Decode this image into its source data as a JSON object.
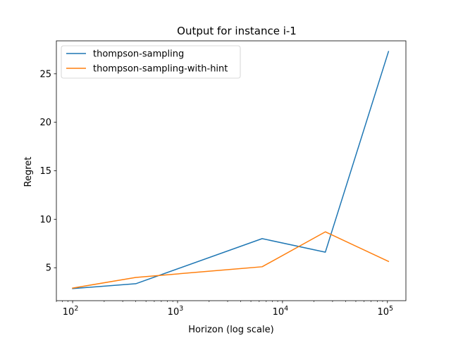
{
  "chart_data": {
    "type": "line",
    "title": "Output for instance i-1",
    "xlabel": "Horizon (log scale)",
    "ylabel": "Regret",
    "x_scale": "log",
    "x": [
      100,
      400,
      6400,
      25600,
      102400
    ],
    "xlim": [
      70,
      150000
    ],
    "ylim": [
      1.6,
      28.4
    ],
    "x_ticks": [
      {
        "value": 100,
        "mantissa": "10",
        "exp": "2"
      },
      {
        "value": 1000,
        "mantissa": "10",
        "exp": "3"
      },
      {
        "value": 10000,
        "mantissa": "10",
        "exp": "4"
      },
      {
        "value": 100000,
        "mantissa": "10",
        "exp": "5"
      }
    ],
    "y_ticks": [
      5,
      10,
      15,
      20,
      25
    ],
    "grid": false,
    "legend_position": "upper-left",
    "series": [
      {
        "name": "thompson-sampling",
        "color": "#1f77b4",
        "values": [
          2.85,
          3.35,
          8.0,
          6.6,
          27.3
        ]
      },
      {
        "name": "thompson-sampling-with-hint",
        "color": "#ff7f0e",
        "values": [
          2.9,
          4.0,
          5.1,
          8.7,
          5.65
        ]
      }
    ]
  }
}
